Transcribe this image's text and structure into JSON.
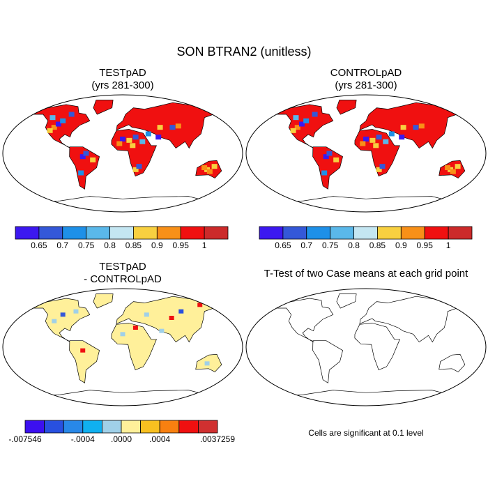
{
  "title": "SON BTRAN2 (unitless)",
  "panels": [
    {
      "title": [
        "TESTpAD",
        "(yrs 281-300)"
      ]
    },
    {
      "title": [
        "CONTROLpAD",
        "(yrs 281-300)"
      ]
    },
    {
      "title": [
        "TESTpAD",
        "- CONTROLpAD"
      ]
    },
    {
      "title": [
        "T-Test of two Case means at each grid point"
      ]
    }
  ],
  "colorbars": [
    {
      "colors": [
        "#3c18f0",
        "#3458d8",
        "#1e90e8",
        "#5ab8ea",
        "#c4e6f2",
        "#f8d040",
        "#f89018",
        "#f01010",
        "#cc2a2a"
      ],
      "labels": [
        null,
        "0.65",
        "0.7",
        "0.75",
        "0.8",
        "0.85",
        "0.9",
        "0.95",
        "1",
        null
      ]
    },
    {
      "colors": [
        "#3c18f0",
        "#3458d8",
        "#1e90e8",
        "#5ab8ea",
        "#c4e6f2",
        "#f8d040",
        "#f89018",
        "#f01010",
        "#cc2a2a"
      ],
      "labels": [
        null,
        "0.65",
        "0.7",
        "0.75",
        "0.8",
        "0.85",
        "0.9",
        "0.95",
        "1",
        null
      ]
    },
    {
      "colors": [
        "#3c10f0",
        "#2850e0",
        "#2888e8",
        "#10b0f0",
        "#a0d0e8",
        "#fff09a",
        "#f8c020",
        "#f88010",
        "#f01010",
        "#d03030"
      ],
      "labels": [
        "-.007546",
        null,
        null,
        "-.0004",
        null,
        ".0000",
        null,
        ".0004",
        null,
        null,
        ".0037259"
      ]
    }
  ],
  "note": "Cells are significant at 0.1 level"
}
